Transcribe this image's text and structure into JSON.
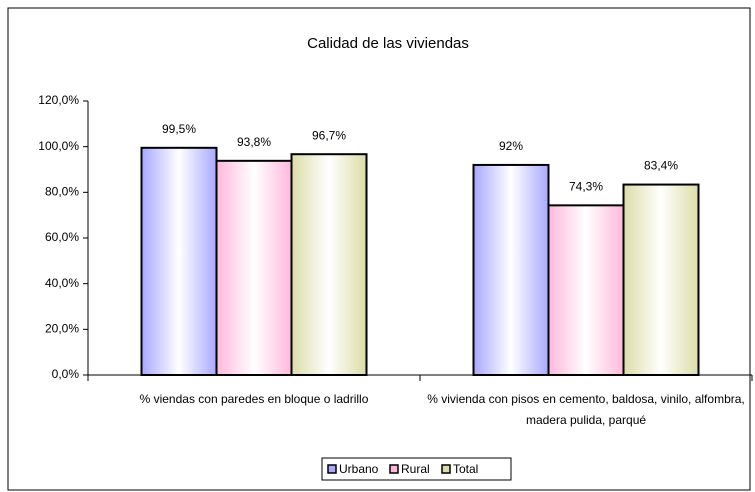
{
  "chart_data": {
    "type": "bar",
    "title": "Calidad de las viviendas",
    "categories": [
      "% viendas con paredes en bloque o ladrillo",
      "% vivienda con pisos en cemento, baldosa, vinilo, alfombra, madera pulida, parqué"
    ],
    "series": [
      {
        "name": "Urbano",
        "color": "#a8a8ff",
        "values": [
          99.5,
          92
        ],
        "value_labels": [
          "99,5%",
          "92%"
        ]
      },
      {
        "name": "Rural",
        "color": "#ffb8dc",
        "values": [
          93.8,
          74.3
        ],
        "value_labels": [
          "93,8%",
          "74,3%"
        ]
      },
      {
        "name": "Total",
        "color": "#dcdca8",
        "values": [
          96.7,
          83.4
        ],
        "value_labels": [
          "96,7%",
          "83,4%"
        ]
      }
    ],
    "ylim": [
      0,
      120
    ],
    "yticks": [
      {
        "value": 0,
        "label": "0,0%"
      },
      {
        "value": 20,
        "label": "20,0%"
      },
      {
        "value": 40,
        "label": "40,0%"
      },
      {
        "value": 60,
        "label": "60,0%"
      },
      {
        "value": 80,
        "label": "80,0%"
      },
      {
        "value": 100,
        "label": "100,0%"
      },
      {
        "value": 120,
        "label": "120,0%"
      }
    ],
    "legend": "bottom"
  }
}
